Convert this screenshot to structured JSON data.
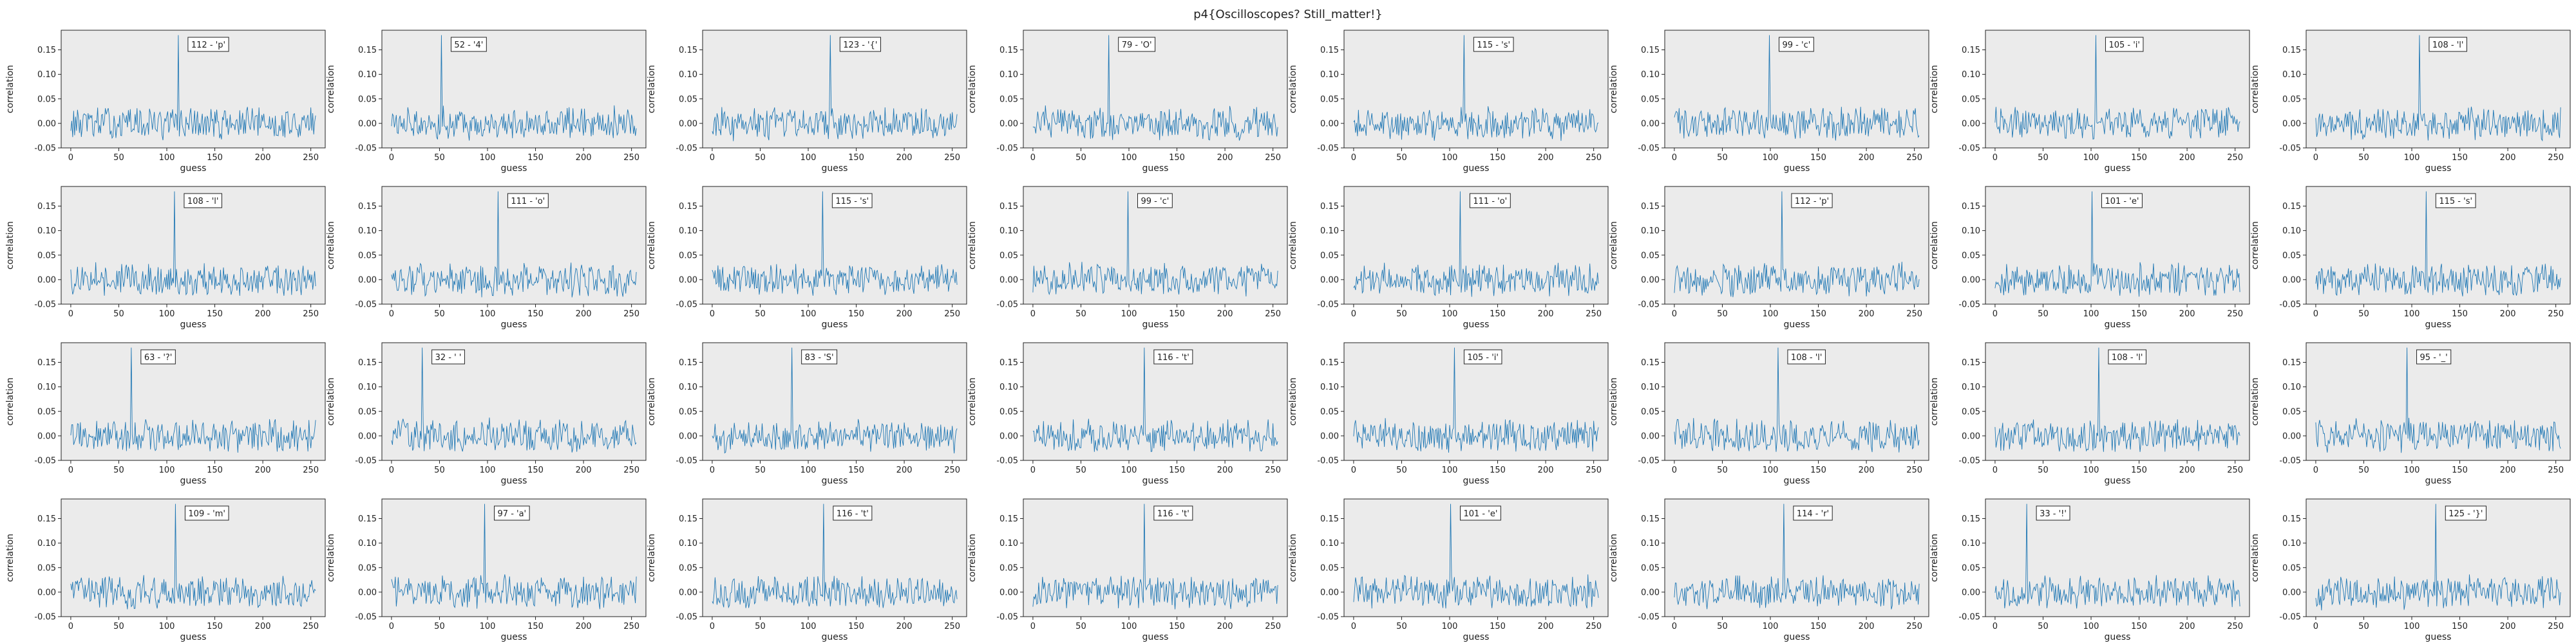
{
  "figure_title": "p4{Oscilloscopes? Still_matter!}",
  "colors": {
    "line": "#1f77b4",
    "axes_bg": "#ebebeb",
    "frame": "#222222"
  },
  "chart_data": [
    {
      "type": "line",
      "peak": 112,
      "label": "112 - 'p'",
      "xlabel": "guess",
      "ylabel": "correlation",
      "xlim": [
        -10,
        265
      ],
      "ylim": [
        -0.05,
        0.19
      ],
      "xticks": [
        0,
        50,
        100,
        150,
        200,
        250
      ],
      "yticks": [
        -0.05,
        0.0,
        0.05,
        0.1,
        0.15
      ],
      "peak_value": 0.18
    },
    {
      "type": "line",
      "peak": 52,
      "label": "52 - '4'",
      "xlabel": "guess",
      "ylabel": "correlation",
      "xlim": [
        -10,
        265
      ],
      "ylim": [
        -0.05,
        0.19
      ],
      "xticks": [
        0,
        50,
        100,
        150,
        200,
        250
      ],
      "yticks": [
        -0.05,
        0.0,
        0.05,
        0.1,
        0.15
      ],
      "peak_value": 0.18
    },
    {
      "type": "line",
      "peak": 123,
      "label": "123 - '{'",
      "xlabel": "guess",
      "ylabel": "correlation",
      "xlim": [
        -10,
        265
      ],
      "ylim": [
        -0.05,
        0.19
      ],
      "xticks": [
        0,
        50,
        100,
        150,
        200,
        250
      ],
      "yticks": [
        -0.05,
        0.0,
        0.05,
        0.1,
        0.15
      ],
      "peak_value": 0.18
    },
    {
      "type": "line",
      "peak": 79,
      "label": "79 - 'O'",
      "xlabel": "guess",
      "ylabel": "correlation",
      "xlim": [
        -10,
        265
      ],
      "ylim": [
        -0.05,
        0.19
      ],
      "xticks": [
        0,
        50,
        100,
        150,
        200,
        250
      ],
      "yticks": [
        -0.05,
        0.0,
        0.05,
        0.1,
        0.15
      ],
      "peak_value": 0.18
    },
    {
      "type": "line",
      "peak": 115,
      "label": "115 - 's'",
      "xlabel": "guess",
      "ylabel": "correlation",
      "xlim": [
        -10,
        265
      ],
      "ylim": [
        -0.05,
        0.19
      ],
      "xticks": [
        0,
        50,
        100,
        150,
        200,
        250
      ],
      "yticks": [
        -0.05,
        0.0,
        0.05,
        0.1,
        0.15
      ],
      "peak_value": 0.18
    },
    {
      "type": "line",
      "peak": 99,
      "label": "99 - 'c'",
      "xlabel": "guess",
      "ylabel": "correlation",
      "xlim": [
        -10,
        265
      ],
      "ylim": [
        -0.05,
        0.19
      ],
      "xticks": [
        0,
        50,
        100,
        150,
        200,
        250
      ],
      "yticks": [
        -0.05,
        0.0,
        0.05,
        0.1,
        0.15
      ],
      "peak_value": 0.18
    },
    {
      "type": "line",
      "peak": 105,
      "label": "105 - 'i'",
      "xlabel": "guess",
      "ylabel": "correlation",
      "xlim": [
        -10,
        265
      ],
      "ylim": [
        -0.05,
        0.19
      ],
      "xticks": [
        0,
        50,
        100,
        150,
        200,
        250
      ],
      "yticks": [
        -0.05,
        0.0,
        0.05,
        0.1,
        0.15
      ],
      "peak_value": 0.18
    },
    {
      "type": "line",
      "peak": 108,
      "label": "108 - 'l'",
      "xlabel": "guess",
      "ylabel": "correlation",
      "xlim": [
        -10,
        265
      ],
      "ylim": [
        -0.05,
        0.19
      ],
      "xticks": [
        0,
        50,
        100,
        150,
        200,
        250
      ],
      "yticks": [
        -0.05,
        0.0,
        0.05,
        0.1,
        0.15
      ],
      "peak_value": 0.18
    },
    {
      "type": "line",
      "peak": 108,
      "label": "108 - 'l'",
      "xlabel": "guess",
      "ylabel": "correlation",
      "xlim": [
        -10,
        265
      ],
      "ylim": [
        -0.05,
        0.19
      ],
      "xticks": [
        0,
        50,
        100,
        150,
        200,
        250
      ],
      "yticks": [
        -0.05,
        0.0,
        0.05,
        0.1,
        0.15
      ],
      "peak_value": 0.18
    },
    {
      "type": "line",
      "peak": 111,
      "label": "111 - 'o'",
      "xlabel": "guess",
      "ylabel": "correlation",
      "xlim": [
        -10,
        265
      ],
      "ylim": [
        -0.05,
        0.19
      ],
      "xticks": [
        0,
        50,
        100,
        150,
        200,
        250
      ],
      "yticks": [
        -0.05,
        0.0,
        0.05,
        0.1,
        0.15
      ],
      "peak_value": 0.18
    },
    {
      "type": "line",
      "peak": 115,
      "label": "115 - 's'",
      "xlabel": "guess",
      "ylabel": "correlation",
      "xlim": [
        -10,
        265
      ],
      "ylim": [
        -0.05,
        0.19
      ],
      "xticks": [
        0,
        50,
        100,
        150,
        200,
        250
      ],
      "yticks": [
        -0.05,
        0.0,
        0.05,
        0.1,
        0.15
      ],
      "peak_value": 0.18
    },
    {
      "type": "line",
      "peak": 99,
      "label": "99 - 'c'",
      "xlabel": "guess",
      "ylabel": "correlation",
      "xlim": [
        -10,
        265
      ],
      "ylim": [
        -0.05,
        0.19
      ],
      "xticks": [
        0,
        50,
        100,
        150,
        200,
        250
      ],
      "yticks": [
        -0.05,
        0.0,
        0.05,
        0.1,
        0.15
      ],
      "peak_value": 0.18
    },
    {
      "type": "line",
      "peak": 111,
      "label": "111 - 'o'",
      "xlabel": "guess",
      "ylabel": "correlation",
      "xlim": [
        -10,
        265
      ],
      "ylim": [
        -0.05,
        0.19
      ],
      "xticks": [
        0,
        50,
        100,
        150,
        200,
        250
      ],
      "yticks": [
        -0.05,
        0.0,
        0.05,
        0.1,
        0.15
      ],
      "peak_value": 0.18
    },
    {
      "type": "line",
      "peak": 112,
      "label": "112 - 'p'",
      "xlabel": "guess",
      "ylabel": "correlation",
      "xlim": [
        -10,
        265
      ],
      "ylim": [
        -0.05,
        0.19
      ],
      "xticks": [
        0,
        50,
        100,
        150,
        200,
        250
      ],
      "yticks": [
        -0.05,
        0.0,
        0.05,
        0.1,
        0.15
      ],
      "peak_value": 0.18
    },
    {
      "type": "line",
      "peak": 101,
      "label": "101 - 'e'",
      "xlabel": "guess",
      "ylabel": "correlation",
      "xlim": [
        -10,
        265
      ],
      "ylim": [
        -0.05,
        0.19
      ],
      "xticks": [
        0,
        50,
        100,
        150,
        200,
        250
      ],
      "yticks": [
        -0.05,
        0.0,
        0.05,
        0.1,
        0.15
      ],
      "peak_value": 0.18
    },
    {
      "type": "line",
      "peak": 115,
      "label": "115 - 's'",
      "xlabel": "guess",
      "ylabel": "correlation",
      "xlim": [
        -10,
        265
      ],
      "ylim": [
        -0.05,
        0.19
      ],
      "xticks": [
        0,
        50,
        100,
        150,
        200,
        250
      ],
      "yticks": [
        -0.05,
        0.0,
        0.05,
        0.1,
        0.15
      ],
      "peak_value": 0.18
    },
    {
      "type": "line",
      "peak": 63,
      "label": "63 - '?'",
      "xlabel": "guess",
      "ylabel": "correlation",
      "xlim": [
        -10,
        265
      ],
      "ylim": [
        -0.05,
        0.19
      ],
      "xticks": [
        0,
        50,
        100,
        150,
        200,
        250
      ],
      "yticks": [
        -0.05,
        0.0,
        0.05,
        0.1,
        0.15
      ],
      "peak_value": 0.18
    },
    {
      "type": "line",
      "peak": 32,
      "label": "32 - ' '",
      "xlabel": "guess",
      "ylabel": "correlation",
      "xlim": [
        -10,
        265
      ],
      "ylim": [
        -0.05,
        0.19
      ],
      "xticks": [
        0,
        50,
        100,
        150,
        200,
        250
      ],
      "yticks": [
        -0.05,
        0.0,
        0.05,
        0.1,
        0.15
      ],
      "peak_value": 0.18
    },
    {
      "type": "line",
      "peak": 83,
      "label": "83 - 'S'",
      "xlabel": "guess",
      "ylabel": "correlation",
      "xlim": [
        -10,
        265
      ],
      "ylim": [
        -0.05,
        0.19
      ],
      "xticks": [
        0,
        50,
        100,
        150,
        200,
        250
      ],
      "yticks": [
        -0.05,
        0.0,
        0.05,
        0.1,
        0.15
      ],
      "peak_value": 0.18
    },
    {
      "type": "line",
      "peak": 116,
      "label": "116 - 't'",
      "xlabel": "guess",
      "ylabel": "correlation",
      "xlim": [
        -10,
        265
      ],
      "ylim": [
        -0.05,
        0.19
      ],
      "xticks": [
        0,
        50,
        100,
        150,
        200,
        250
      ],
      "yticks": [
        -0.05,
        0.0,
        0.05,
        0.1,
        0.15
      ],
      "peak_value": 0.18
    },
    {
      "type": "line",
      "peak": 105,
      "label": "105 - 'i'",
      "xlabel": "guess",
      "ylabel": "correlation",
      "xlim": [
        -10,
        265
      ],
      "ylim": [
        -0.05,
        0.19
      ],
      "xticks": [
        0,
        50,
        100,
        150,
        200,
        250
      ],
      "yticks": [
        -0.05,
        0.0,
        0.05,
        0.1,
        0.15
      ],
      "peak_value": 0.18
    },
    {
      "type": "line",
      "peak": 108,
      "label": "108 - 'l'",
      "xlabel": "guess",
      "ylabel": "correlation",
      "xlim": [
        -10,
        265
      ],
      "ylim": [
        -0.05,
        0.19
      ],
      "xticks": [
        0,
        50,
        100,
        150,
        200,
        250
      ],
      "yticks": [
        -0.05,
        0.0,
        0.05,
        0.1,
        0.15
      ],
      "peak_value": 0.18
    },
    {
      "type": "line",
      "peak": 108,
      "label": "108 - 'l'",
      "xlabel": "guess",
      "ylabel": "correlation",
      "xlim": [
        -10,
        265
      ],
      "ylim": [
        -0.05,
        0.19
      ],
      "xticks": [
        0,
        50,
        100,
        150,
        200,
        250
      ],
      "yticks": [
        -0.05,
        0.0,
        0.05,
        0.1,
        0.15
      ],
      "peak_value": 0.18
    },
    {
      "type": "line",
      "peak": 95,
      "label": "95 - '_'",
      "xlabel": "guess",
      "ylabel": "correlation",
      "xlim": [
        -10,
        265
      ],
      "ylim": [
        -0.05,
        0.19
      ],
      "xticks": [
        0,
        50,
        100,
        150,
        200,
        250
      ],
      "yticks": [
        -0.05,
        0.0,
        0.05,
        0.1,
        0.15
      ],
      "peak_value": 0.18
    },
    {
      "type": "line",
      "peak": 109,
      "label": "109 - 'm'",
      "xlabel": "guess",
      "ylabel": "correlation",
      "xlim": [
        -10,
        265
      ],
      "ylim": [
        -0.05,
        0.19
      ],
      "xticks": [
        0,
        50,
        100,
        150,
        200,
        250
      ],
      "yticks": [
        -0.05,
        0.0,
        0.05,
        0.1,
        0.15
      ],
      "peak_value": 0.18
    },
    {
      "type": "line",
      "peak": 97,
      "label": "97 - 'a'",
      "xlabel": "guess",
      "ylabel": "correlation",
      "xlim": [
        -10,
        265
      ],
      "ylim": [
        -0.05,
        0.19
      ],
      "xticks": [
        0,
        50,
        100,
        150,
        200,
        250
      ],
      "yticks": [
        -0.05,
        0.0,
        0.05,
        0.1,
        0.15
      ],
      "peak_value": 0.18
    },
    {
      "type": "line",
      "peak": 116,
      "label": "116 - 't'",
      "xlabel": "guess",
      "ylabel": "correlation",
      "xlim": [
        -10,
        265
      ],
      "ylim": [
        -0.05,
        0.19
      ],
      "xticks": [
        0,
        50,
        100,
        150,
        200,
        250
      ],
      "yticks": [
        -0.05,
        0.0,
        0.05,
        0.1,
        0.15
      ],
      "peak_value": 0.18
    },
    {
      "type": "line",
      "peak": 116,
      "label": "116 - 't'",
      "xlabel": "guess",
      "ylabel": "correlation",
      "xlim": [
        -10,
        265
      ],
      "ylim": [
        -0.05,
        0.19
      ],
      "xticks": [
        0,
        50,
        100,
        150,
        200,
        250
      ],
      "yticks": [
        -0.05,
        0.0,
        0.05,
        0.1,
        0.15
      ],
      "peak_value": 0.18
    },
    {
      "type": "line",
      "peak": 101,
      "label": "101 - 'e'",
      "xlabel": "guess",
      "ylabel": "correlation",
      "xlim": [
        -10,
        265
      ],
      "ylim": [
        -0.05,
        0.19
      ],
      "xticks": [
        0,
        50,
        100,
        150,
        200,
        250
      ],
      "yticks": [
        -0.05,
        0.0,
        0.05,
        0.1,
        0.15
      ],
      "peak_value": 0.18
    },
    {
      "type": "line",
      "peak": 114,
      "label": "114 - 'r'",
      "xlabel": "guess",
      "ylabel": "correlation",
      "xlim": [
        -10,
        265
      ],
      "ylim": [
        -0.05,
        0.19
      ],
      "xticks": [
        0,
        50,
        100,
        150,
        200,
        250
      ],
      "yticks": [
        -0.05,
        0.0,
        0.05,
        0.1,
        0.15
      ],
      "peak_value": 0.18
    },
    {
      "type": "line",
      "peak": 33,
      "label": "33 - '!'",
      "xlabel": "guess",
      "ylabel": "correlation",
      "xlim": [
        -10,
        265
      ],
      "ylim": [
        -0.05,
        0.19
      ],
      "xticks": [
        0,
        50,
        100,
        150,
        200,
        250
      ],
      "yticks": [
        -0.05,
        0.0,
        0.05,
        0.1,
        0.15
      ],
      "peak_value": 0.18
    },
    {
      "type": "line",
      "peak": 125,
      "label": "125 - '}'",
      "xlabel": "guess",
      "ylabel": "correlation",
      "xlim": [
        -10,
        265
      ],
      "ylim": [
        -0.05,
        0.19
      ],
      "xticks": [
        0,
        50,
        100,
        150,
        200,
        250
      ],
      "yticks": [
        -0.05,
        0.0,
        0.05,
        0.1,
        0.15
      ],
      "peak_value": 0.18
    }
  ]
}
